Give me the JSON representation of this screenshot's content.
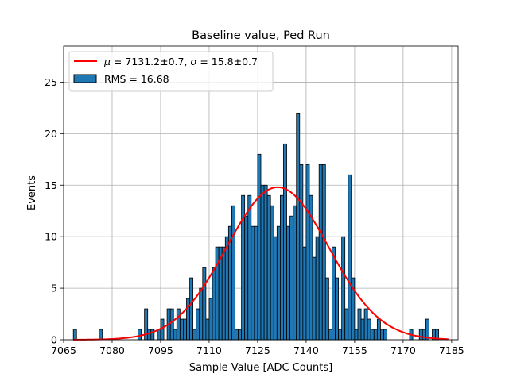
{
  "chart_data": {
    "type": "bar",
    "title": "Baseline value, Ped Run",
    "xlabel": "Sample Value [ADC Counts]",
    "ylabel": "Events",
    "xlim": [
      7065,
      7187
    ],
    "ylim": [
      0,
      28.5
    ],
    "xticks": [
      7065,
      7080,
      7095,
      7110,
      7125,
      7140,
      7155,
      7170,
      7185
    ],
    "yticks": [
      0,
      5,
      10,
      15,
      20,
      25
    ],
    "grid": true,
    "legend_position": "top-left",
    "bin_width": 1,
    "series": [
      {
        "name": "RMS = 16.68",
        "kind": "histogram",
        "color": "#1f77b4",
        "edgecolor": "#000000",
        "bins": [
          [
            7068,
            1
          ],
          [
            7076,
            1
          ],
          [
            7088,
            1
          ],
          [
            7090,
            3
          ],
          [
            7091,
            1
          ],
          [
            7092,
            1
          ],
          [
            7094,
            1
          ],
          [
            7095,
            2
          ],
          [
            7097,
            3
          ],
          [
            7098,
            3
          ],
          [
            7099,
            1
          ],
          [
            7100,
            3
          ],
          [
            7101,
            2
          ],
          [
            7102,
            2
          ],
          [
            7103,
            4
          ],
          [
            7104,
            6
          ],
          [
            7105,
            1
          ],
          [
            7106,
            3
          ],
          [
            7107,
            5
          ],
          [
            7108,
            7
          ],
          [
            7109,
            2
          ],
          [
            7110,
            4
          ],
          [
            7111,
            7
          ],
          [
            7112,
            9
          ],
          [
            7113,
            9
          ],
          [
            7114,
            9
          ],
          [
            7115,
            10
          ],
          [
            7116,
            11
          ],
          [
            7117,
            13
          ],
          [
            7118,
            1
          ],
          [
            7119,
            1
          ],
          [
            7120,
            14
          ],
          [
            7121,
            12
          ],
          [
            7122,
            14
          ],
          [
            7123,
            11
          ],
          [
            7124,
            11
          ],
          [
            7125,
            18
          ],
          [
            7126,
            15
          ],
          [
            7127,
            15
          ],
          [
            7128,
            14
          ],
          [
            7129,
            13
          ],
          [
            7130,
            10
          ],
          [
            7131,
            11
          ],
          [
            7132,
            14
          ],
          [
            7133,
            19
          ],
          [
            7134,
            11
          ],
          [
            7135,
            12
          ],
          [
            7136,
            13
          ],
          [
            7137,
            22
          ],
          [
            7138,
            17
          ],
          [
            7139,
            9
          ],
          [
            7140,
            17
          ],
          [
            7141,
            14
          ],
          [
            7142,
            8
          ],
          [
            7143,
            10
          ],
          [
            7144,
            17
          ],
          [
            7145,
            17
          ],
          [
            7146,
            6
          ],
          [
            7147,
            1
          ],
          [
            7148,
            9
          ],
          [
            7149,
            6
          ],
          [
            7150,
            1
          ],
          [
            7151,
            10
          ],
          [
            7152,
            3
          ],
          [
            7153,
            16
          ],
          [
            7154,
            6
          ],
          [
            7155,
            1
          ],
          [
            7156,
            3
          ],
          [
            7157,
            2
          ],
          [
            7158,
            3
          ],
          [
            7159,
            2
          ],
          [
            7160,
            1
          ],
          [
            7161,
            1
          ],
          [
            7162,
            2
          ],
          [
            7163,
            1
          ],
          [
            7164,
            1
          ],
          [
            7172,
            1
          ],
          [
            7175,
            1
          ],
          [
            7176,
            1
          ],
          [
            7177,
            2
          ],
          [
            7179,
            1
          ],
          [
            7180,
            1
          ]
        ]
      },
      {
        "name": "$\\mu$ = 7131.2±0.7, $\\sigma$ = 15.8±0.7",
        "kind": "gaussian-fit",
        "color": "#ff0000",
        "mu": 7131.2,
        "sigma": 15.8,
        "amplitude": 14.8,
        "x_range": [
          7068,
          7184
        ]
      }
    ],
    "legend": [
      {
        "kind": "line",
        "label_parts": [
          "μ",
          " = 7131.2±0.7, ",
          "σ",
          " = 15.8±0.7"
        ]
      },
      {
        "kind": "patch",
        "label": "RMS = 16.68"
      }
    ]
  }
}
